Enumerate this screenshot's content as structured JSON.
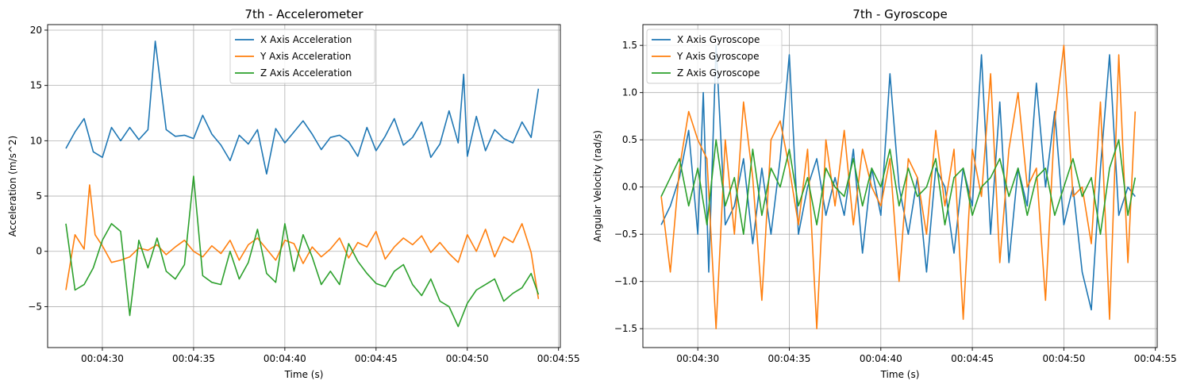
{
  "colors": {
    "x": "#1f77b4",
    "y": "#ff7f0e",
    "z": "#2ca02c",
    "grid": "#b0b0b0"
  },
  "chart_data": [
    {
      "type": "line",
      "title": "7th - Accelerometer",
      "xlabel": "Time (s)",
      "ylabel": "Acceleration (m/s^2)",
      "x_tick_labels": [
        "00:04:30",
        "00:04:35",
        "00:04:40",
        "00:04:45",
        "00:04:50",
        "00:04:55"
      ],
      "x_tick_values": [
        30,
        35,
        40,
        45,
        50,
        55
      ],
      "x_range": [
        27.0,
        55.1
      ],
      "y_ticks": [
        -5,
        0,
        5,
        10,
        15,
        20
      ],
      "y_tick_labels": [
        "−5",
        "0",
        "5",
        "10",
        "15",
        "20"
      ],
      "ylim": [
        -8.7,
        20.5
      ],
      "grid": true,
      "legend_position": "top-center",
      "series": [
        {
          "name": "X Axis Acceleration",
          "color": "#1f77b4",
          "x": [
            28.0,
            28.5,
            29.0,
            29.5,
            30.0,
            30.5,
            31.0,
            31.5,
            32.0,
            32.5,
            32.9,
            33.5,
            34.0,
            34.5,
            35.0,
            35.5,
            36.0,
            36.5,
            37.0,
            37.5,
            38.0,
            38.5,
            39.0,
            39.5,
            40.0,
            40.5,
            41.0,
            41.5,
            42.0,
            42.5,
            43.0,
            43.5,
            44.0,
            44.5,
            45.0,
            45.5,
            46.0,
            46.5,
            47.0,
            47.5,
            48.0,
            48.5,
            49.0,
            49.5,
            49.8,
            50.0,
            50.5,
            51.0,
            51.5,
            52.0,
            52.5,
            53.0,
            53.5,
            53.9
          ],
          "y": [
            9.3,
            10.8,
            12.0,
            9.0,
            8.5,
            11.2,
            10.0,
            11.2,
            10.1,
            11.0,
            19.0,
            11.0,
            10.4,
            10.5,
            10.2,
            12.3,
            10.6,
            9.6,
            8.2,
            10.5,
            9.7,
            11.0,
            7.0,
            11.1,
            9.8,
            10.8,
            11.8,
            10.6,
            9.2,
            10.3,
            10.5,
            9.9,
            8.6,
            11.2,
            9.1,
            10.4,
            12.0,
            9.6,
            10.3,
            11.7,
            8.5,
            9.7,
            12.7,
            9.8,
            16.0,
            8.6,
            12.2,
            9.1,
            11.0,
            10.2,
            9.8,
            11.7,
            10.3,
            14.7
          ]
        },
        {
          "name": "Y Axis Acceleration",
          "color": "#ff7f0e",
          "x": [
            28.0,
            28.5,
            29.0,
            29.3,
            29.6,
            30.0,
            30.5,
            31.0,
            31.5,
            32.0,
            32.5,
            33.0,
            33.5,
            34.0,
            34.5,
            35.0,
            35.5,
            36.0,
            36.5,
            37.0,
            37.5,
            38.0,
            38.5,
            39.0,
            39.5,
            40.0,
            40.5,
            41.0,
            41.5,
            42.0,
            42.5,
            43.0,
            43.5,
            44.0,
            44.5,
            45.0,
            45.5,
            46.0,
            46.5,
            47.0,
            47.5,
            48.0,
            48.5,
            49.0,
            49.5,
            50.0,
            50.5,
            51.0,
            51.5,
            52.0,
            52.5,
            53.0,
            53.5,
            53.9
          ],
          "y": [
            -3.5,
            1.5,
            0.2,
            6.0,
            1.5,
            0.5,
            -1.0,
            -0.8,
            -0.5,
            0.3,
            0.1,
            0.6,
            -0.3,
            0.4,
            1.0,
            0.0,
            -0.5,
            0.5,
            -0.2,
            1.0,
            -0.8,
            0.6,
            1.2,
            0.2,
            -0.8,
            1.0,
            0.7,
            -1.1,
            0.4,
            -0.5,
            0.2,
            1.2,
            -0.6,
            0.8,
            0.4,
            1.8,
            -0.7,
            0.4,
            1.2,
            0.6,
            1.4,
            -0.1,
            0.8,
            -0.2,
            -1.0,
            1.5,
            0.0,
            2.0,
            -0.5,
            1.3,
            0.8,
            2.5,
            -0.1,
            -4.3
          ]
        },
        {
          "name": "Z Axis Acceleration",
          "color": "#2ca02c",
          "x": [
            28.0,
            28.5,
            29.0,
            29.5,
            30.0,
            30.5,
            31.0,
            31.5,
            32.0,
            32.5,
            33.0,
            33.5,
            34.0,
            34.5,
            35.0,
            35.5,
            36.0,
            36.5,
            37.0,
            37.5,
            38.0,
            38.5,
            39.0,
            39.5,
            40.0,
            40.5,
            41.0,
            41.5,
            42.0,
            42.5,
            43.0,
            43.5,
            44.0,
            44.5,
            45.0,
            45.5,
            46.0,
            46.5,
            47.0,
            47.5,
            48.0,
            48.5,
            49.0,
            49.5,
            50.0,
            50.5,
            51.0,
            51.5,
            52.0,
            52.5,
            53.0,
            53.5,
            53.9
          ],
          "y": [
            2.5,
            -3.5,
            -3.0,
            -1.5,
            1.0,
            2.5,
            1.8,
            -5.8,
            1.0,
            -1.5,
            1.2,
            -1.8,
            -2.5,
            -1.2,
            6.8,
            -2.2,
            -2.8,
            -3.0,
            0.0,
            -2.5,
            -1.0,
            2.0,
            -2.0,
            -2.8,
            2.5,
            -1.8,
            1.5,
            -0.5,
            -3.0,
            -1.8,
            -3.0,
            0.7,
            -0.9,
            -2.0,
            -2.9,
            -3.2,
            -1.8,
            -1.2,
            -3.0,
            -4.0,
            -2.5,
            -4.5,
            -5.0,
            -6.8,
            -4.7,
            -3.5,
            -3.0,
            -2.5,
            -4.5,
            -3.8,
            -3.3,
            -2.0,
            -3.9
          ]
        }
      ]
    },
    {
      "type": "line",
      "title": "7th - Gyroscope",
      "xlabel": "Time (s)",
      "ylabel": "Angular Velocity (rad/s)",
      "x_tick_labels": [
        "00:04:30",
        "00:04:35",
        "00:04:40",
        "00:04:45",
        "00:04:50",
        "00:04:55"
      ],
      "x_tick_values": [
        30,
        35,
        40,
        45,
        50,
        55
      ],
      "x_range": [
        27.0,
        55.1
      ],
      "y_ticks": [
        -1.5,
        -1.0,
        -0.5,
        0.0,
        0.5,
        1.0,
        1.5
      ],
      "y_tick_labels": [
        "−1.5",
        "−1.0",
        "−0.5",
        "0.0",
        "0.5",
        "1.0",
        "1.5"
      ],
      "ylim": [
        -1.7,
        1.72
      ],
      "grid": true,
      "legend_position": "top-left",
      "series": [
        {
          "name": "X Axis Gyroscope",
          "color": "#1f77b4",
          "x": [
            28.0,
            28.5,
            29.0,
            29.5,
            30.0,
            30.3,
            30.6,
            31.0,
            31.5,
            32.0,
            32.5,
            33.0,
            33.5,
            34.0,
            34.5,
            35.0,
            35.5,
            36.0,
            36.5,
            37.0,
            37.5,
            38.0,
            38.5,
            39.0,
            39.5,
            40.0,
            40.5,
            41.0,
            41.5,
            42.0,
            42.5,
            43.0,
            43.5,
            44.0,
            44.5,
            45.0,
            45.5,
            46.0,
            46.5,
            47.0,
            47.5,
            48.0,
            48.5,
            49.0,
            49.5,
            50.0,
            50.5,
            51.0,
            51.5,
            52.0,
            52.5,
            53.0,
            53.5,
            53.9
          ],
          "y": [
            -0.4,
            -0.2,
            0.1,
            0.6,
            -0.5,
            1.0,
            -0.9,
            1.5,
            -0.4,
            -0.2,
            0.3,
            -0.6,
            0.2,
            -0.5,
            0.3,
            1.4,
            -0.5,
            0.0,
            0.3,
            -0.3,
            0.1,
            -0.3,
            0.4,
            -0.7,
            0.2,
            -0.3,
            1.2,
            0.0,
            -0.5,
            0.1,
            -0.9,
            0.2,
            0.0,
            -0.7,
            0.2,
            -0.2,
            1.4,
            -0.5,
            0.9,
            -0.8,
            0.2,
            -0.2,
            1.1,
            0.0,
            0.8,
            -0.4,
            0.0,
            -0.9,
            -1.3,
            0.2,
            1.4,
            -0.3,
            0.0,
            -0.1
          ]
        },
        {
          "name": "Y Axis Gyroscope",
          "color": "#ff7f0e",
          "x": [
            28.0,
            28.5,
            29.0,
            29.5,
            30.0,
            30.5,
            31.0,
            31.5,
            32.0,
            32.5,
            33.0,
            33.5,
            34.0,
            34.5,
            35.0,
            35.5,
            36.0,
            36.5,
            37.0,
            37.5,
            38.0,
            38.5,
            39.0,
            39.5,
            40.0,
            40.5,
            41.0,
            41.5,
            42.0,
            42.5,
            43.0,
            43.5,
            44.0,
            44.5,
            45.0,
            45.5,
            46.0,
            46.5,
            47.0,
            47.5,
            48.0,
            48.5,
            49.0,
            49.5,
            50.0,
            50.5,
            51.0,
            51.5,
            52.0,
            52.5,
            53.0,
            53.5,
            53.9
          ],
          "y": [
            -0.1,
            -0.9,
            0.2,
            0.8,
            0.5,
            0.3,
            -1.5,
            0.5,
            -0.5,
            0.9,
            0.1,
            -1.2,
            0.5,
            0.7,
            0.2,
            -0.4,
            0.4,
            -1.5,
            0.5,
            -0.2,
            0.6,
            -0.4,
            0.4,
            0.0,
            -0.2,
            0.3,
            -1.0,
            0.3,
            0.1,
            -0.5,
            0.6,
            -0.2,
            0.4,
            -1.4,
            0.4,
            -0.1,
            1.2,
            -0.8,
            0.4,
            1.0,
            0.0,
            0.2,
            -1.2,
            0.7,
            1.5,
            -0.1,
            0.0,
            -0.6,
            0.9,
            -1.4,
            1.4,
            -0.8,
            0.8
          ]
        },
        {
          "name": "Z Axis Gyroscope",
          "color": "#2ca02c",
          "x": [
            28.0,
            28.5,
            29.0,
            29.5,
            30.0,
            30.5,
            31.0,
            31.5,
            32.0,
            32.5,
            33.0,
            33.5,
            34.0,
            34.5,
            35.0,
            35.5,
            36.0,
            36.5,
            37.0,
            37.5,
            38.0,
            38.5,
            39.0,
            39.5,
            40.0,
            40.5,
            41.0,
            41.5,
            42.0,
            42.5,
            43.0,
            43.5,
            44.0,
            44.5,
            45.0,
            45.5,
            46.0,
            46.5,
            47.0,
            47.5,
            48.0,
            48.5,
            49.0,
            49.5,
            50.0,
            50.5,
            51.0,
            51.5,
            52.0,
            52.5,
            53.0,
            53.5,
            53.9
          ],
          "y": [
            -0.1,
            0.1,
            0.3,
            -0.2,
            0.2,
            -0.4,
            0.5,
            -0.2,
            0.1,
            -0.5,
            0.4,
            -0.3,
            0.2,
            0.0,
            0.4,
            -0.2,
            0.1,
            -0.4,
            0.2,
            0.0,
            -0.1,
            0.3,
            -0.2,
            0.2,
            0.0,
            0.4,
            -0.2,
            0.2,
            -0.1,
            0.0,
            0.3,
            -0.4,
            0.1,
            0.2,
            -0.3,
            0.0,
            0.1,
            0.3,
            -0.1,
            0.2,
            -0.3,
            0.1,
            0.2,
            -0.3,
            0.0,
            0.3,
            -0.1,
            0.1,
            -0.5,
            0.2,
            0.5,
            -0.3,
            0.1
          ]
        }
      ]
    }
  ]
}
